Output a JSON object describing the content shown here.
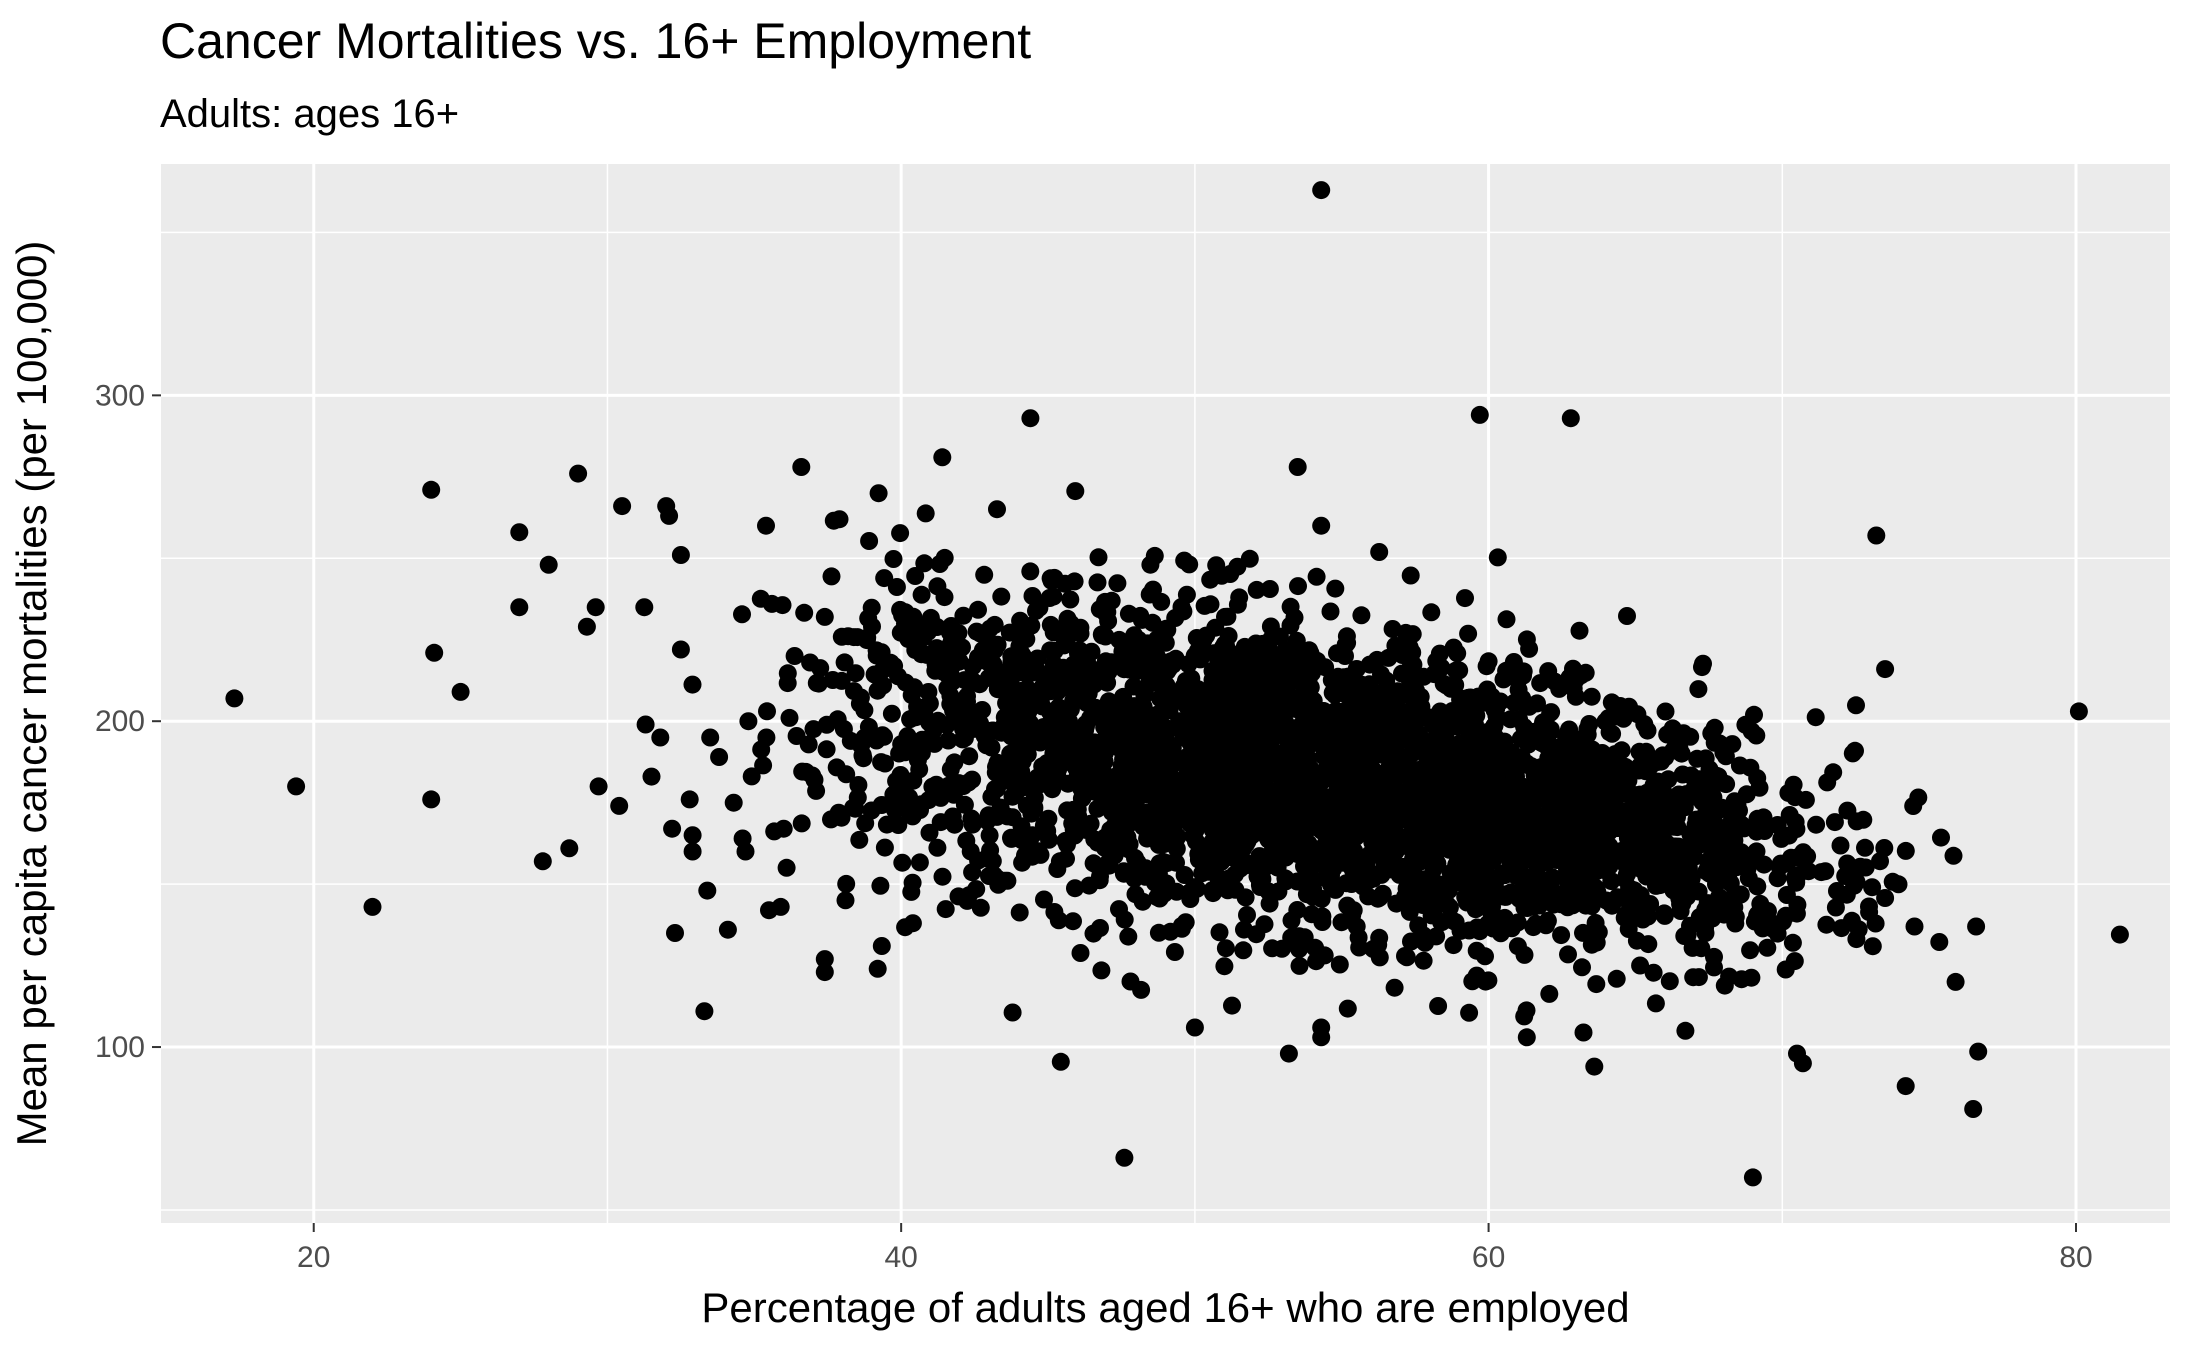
{
  "chart_data": {
    "type": "scatter",
    "title": "Cancer Mortalities vs. 16+ Employment",
    "subtitle": "Adults: ages 16+",
    "xlabel": "Percentage of adults aged 16+ who are employed",
    "ylabel": "Mean per capita cancer mortalities (per 100,000)",
    "xlim": [
      14.8,
      83.2
    ],
    "ylim": [
      46,
      371
    ],
    "x_ticks": [
      20,
      40,
      60,
      80
    ],
    "y_ticks": [
      100,
      200,
      300
    ],
    "grid": true,
    "background": "#ebebeb",
    "point_color": "#000000",
    "grid_color": "#ffffff",
    "outliers": [
      {
        "x": 17.3,
        "y": 207
      },
      {
        "x": 19.4,
        "y": 180
      },
      {
        "x": 22.0,
        "y": 143
      },
      {
        "x": 24.0,
        "y": 271
      },
      {
        "x": 24.1,
        "y": 221
      },
      {
        "x": 24.0,
        "y": 176
      },
      {
        "x": 25.0,
        "y": 209
      },
      {
        "x": 27.0,
        "y": 258
      },
      {
        "x": 27.0,
        "y": 235
      },
      {
        "x": 27.8,
        "y": 157
      },
      {
        "x": 28.0,
        "y": 248
      },
      {
        "x": 28.7,
        "y": 161
      },
      {
        "x": 29.0,
        "y": 276
      },
      {
        "x": 29.3,
        "y": 229
      },
      {
        "x": 29.6,
        "y": 235
      },
      {
        "x": 29.7,
        "y": 180
      },
      {
        "x": 30.4,
        "y": 174
      },
      {
        "x": 30.5,
        "y": 266
      },
      {
        "x": 31.3,
        "y": 199
      },
      {
        "x": 31.5,
        "y": 183
      },
      {
        "x": 31.8,
        "y": 195
      },
      {
        "x": 32.0,
        "y": 266
      },
      {
        "x": 32.1,
        "y": 263
      },
      {
        "x": 32.2,
        "y": 167
      },
      {
        "x": 32.3,
        "y": 135
      },
      {
        "x": 32.5,
        "y": 251
      },
      {
        "x": 32.5,
        "y": 222
      },
      {
        "x": 32.8,
        "y": 176
      },
      {
        "x": 32.9,
        "y": 165
      },
      {
        "x": 32.9,
        "y": 160
      },
      {
        "x": 33.3,
        "y": 111
      },
      {
        "x": 33.4,
        "y": 148
      },
      {
        "x": 33.5,
        "y": 195
      },
      {
        "x": 33.8,
        "y": 189
      },
      {
        "x": 34.1,
        "y": 136
      },
      {
        "x": 34.3,
        "y": 175
      },
      {
        "x": 34.6,
        "y": 164
      },
      {
        "x": 34.7,
        "y": 160
      },
      {
        "x": 34.8,
        "y": 200
      },
      {
        "x": 35.4,
        "y": 260
      },
      {
        "x": 35.5,
        "y": 142
      },
      {
        "x": 35.6,
        "y": 236
      },
      {
        "x": 35.9,
        "y": 143
      },
      {
        "x": 36.0,
        "y": 167
      },
      {
        "x": 36.1,
        "y": 155
      },
      {
        "x": 36.6,
        "y": 278
      },
      {
        "x": 36.9,
        "y": 218
      },
      {
        "x": 37.4,
        "y": 127
      },
      {
        "x": 37.4,
        "y": 123
      },
      {
        "x": 37.4,
        "y": 232
      },
      {
        "x": 37.9,
        "y": 262
      },
      {
        "x": 39.2,
        "y": 124
      },
      {
        "x": 40.4,
        "y": 138
      },
      {
        "x": 41.4,
        "y": 281
      },
      {
        "x": 44.4,
        "y": 293
      },
      {
        "x": 47.6,
        "y": 66
      },
      {
        "x": 50.0,
        "y": 106
      },
      {
        "x": 53.2,
        "y": 98
      },
      {
        "x": 53.5,
        "y": 278
      },
      {
        "x": 54.3,
        "y": 363
      },
      {
        "x": 54.3,
        "y": 260
      },
      {
        "x": 54.3,
        "y": 103
      },
      {
        "x": 54.3,
        "y": 106
      },
      {
        "x": 59.7,
        "y": 294
      },
      {
        "x": 61.3,
        "y": 103
      },
      {
        "x": 62.8,
        "y": 293
      },
      {
        "x": 63.6,
        "y": 94
      },
      {
        "x": 66.7,
        "y": 105
      },
      {
        "x": 69.0,
        "y": 60
      },
      {
        "x": 70.5,
        "y": 98
      },
      {
        "x": 70.7,
        "y": 95
      },
      {
        "x": 73.2,
        "y": 257
      },
      {
        "x": 73.5,
        "y": 216
      },
      {
        "x": 74.2,
        "y": 88
      },
      {
        "x": 74.5,
        "y": 137
      },
      {
        "x": 75.9,
        "y": 120
      },
      {
        "x": 76.5,
        "y": 81
      },
      {
        "x": 76.6,
        "y": 137
      },
      {
        "x": 80.1,
        "y": 203
      }
    ],
    "clusters": [
      {
        "cx": 41,
        "cy": 205,
        "sx": 2.8,
        "sy": 26,
        "n": 260
      },
      {
        "cx": 47.5,
        "cy": 192,
        "sx": 3.6,
        "sy": 24,
        "n": 700
      },
      {
        "cx": 53,
        "cy": 185,
        "sx": 3.8,
        "sy": 23,
        "n": 900
      },
      {
        "cx": 59,
        "cy": 175,
        "sx": 3.6,
        "sy": 21,
        "n": 850
      },
      {
        "cx": 64.5,
        "cy": 165,
        "sx": 3.4,
        "sy": 19,
        "n": 480
      },
      {
        "cx": 69.5,
        "cy": 150,
        "sx": 2.8,
        "sy": 17,
        "n": 120
      }
    ]
  }
}
